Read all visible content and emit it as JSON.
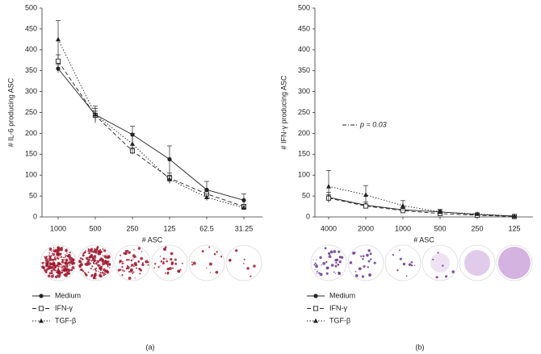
{
  "chart_data": [
    {
      "type": "line",
      "panel_label": "(a)",
      "y_label": "# IL-6 producing ASC",
      "x_label": "# ASC",
      "categories": [
        "1000",
        "500",
        "250",
        "125",
        "62.5",
        "31.25"
      ],
      "ylim": [
        0,
        500
      ],
      "yticks": [
        0,
        50,
        100,
        150,
        200,
        250,
        300,
        350,
        400,
        450,
        500
      ],
      "series": [
        {
          "name": "Medium",
          "color": "#222222",
          "line_style": "solid",
          "marker": "circle",
          "values": [
            355,
            245,
            197,
            138,
            65,
            40
          ],
          "errors": [
            10,
            15,
            20,
            32,
            20,
            15
          ]
        },
        {
          "name": "IFN-γ",
          "color": "#222222",
          "line_style": "dashed",
          "marker": "square",
          "values": [
            373,
            243,
            158,
            93,
            55,
            25
          ],
          "errors": [
            15,
            10,
            8,
            12,
            10,
            5
          ]
        },
        {
          "name": "TGF-β",
          "color": "#222222",
          "line_style": "dotted",
          "marker": "triangle",
          "values": [
            425,
            245,
            175,
            90,
            47,
            22
          ],
          "errors": [
            45,
            20,
            25,
            10,
            8,
            5
          ]
        }
      ]
    },
    {
      "type": "line",
      "panel_label": "(b)",
      "y_label": "# IFN-γ producing ASC",
      "x_label": "# ASC",
      "annotation": "p = 0.03",
      "categories": [
        "4000",
        "2000",
        "1000",
        "500",
        "250",
        "125"
      ],
      "ylim": [
        0,
        500
      ],
      "yticks": [
        0,
        50,
        100,
        150,
        200,
        250,
        300,
        350,
        400,
        450,
        500
      ],
      "series": [
        {
          "name": "Medium",
          "color": "#222222",
          "line_style": "solid",
          "marker": "circle",
          "values": [
            47,
            28,
            17,
            12,
            6,
            2
          ],
          "errors": [
            12,
            8,
            5,
            5,
            2,
            1
          ]
        },
        {
          "name": "IFN-γ",
          "color": "#222222",
          "line_style": "dashed",
          "marker": "square",
          "values": [
            45,
            26,
            15,
            8,
            4,
            1
          ],
          "errors": [
            8,
            5,
            4,
            3,
            1,
            1
          ]
        },
        {
          "name": "TGF-β",
          "color": "#222222",
          "line_style": "dotted",
          "marker": "triangle",
          "values": [
            73,
            53,
            27,
            12,
            7,
            2
          ],
          "errors": [
            38,
            22,
            12,
            6,
            3,
            1
          ]
        }
      ]
    }
  ]
}
